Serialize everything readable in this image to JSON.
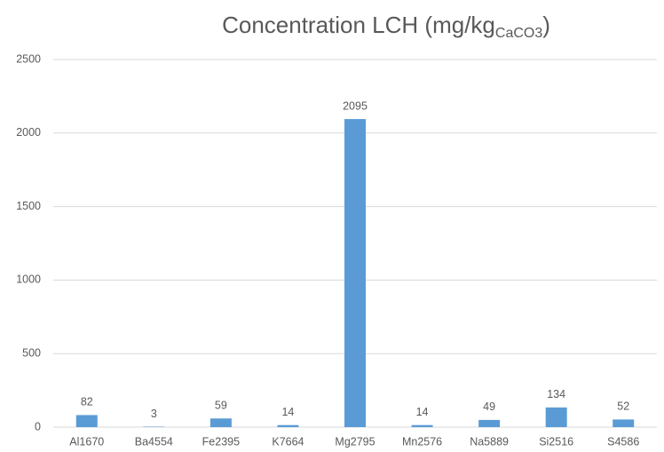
{
  "chart_data": {
    "type": "bar",
    "title": "Concentration LCH (mg/kg",
    "title_subscript": "CaCO3",
    "title_suffix": ")",
    "categories": [
      "Al1670",
      "Ba4554",
      "Fe2395",
      "K7664",
      "Mg2795",
      "Mn2576",
      "Na5889",
      "Si2516",
      "S4586"
    ],
    "values": [
      82,
      3,
      59,
      14,
      2095,
      14,
      49,
      134,
      52
    ],
    "color": "#5b9bd5",
    "ylim": [
      0,
      2500
    ],
    "yticks": [
      0,
      500,
      1000,
      1500,
      2000,
      2500
    ],
    "grid": true
  }
}
